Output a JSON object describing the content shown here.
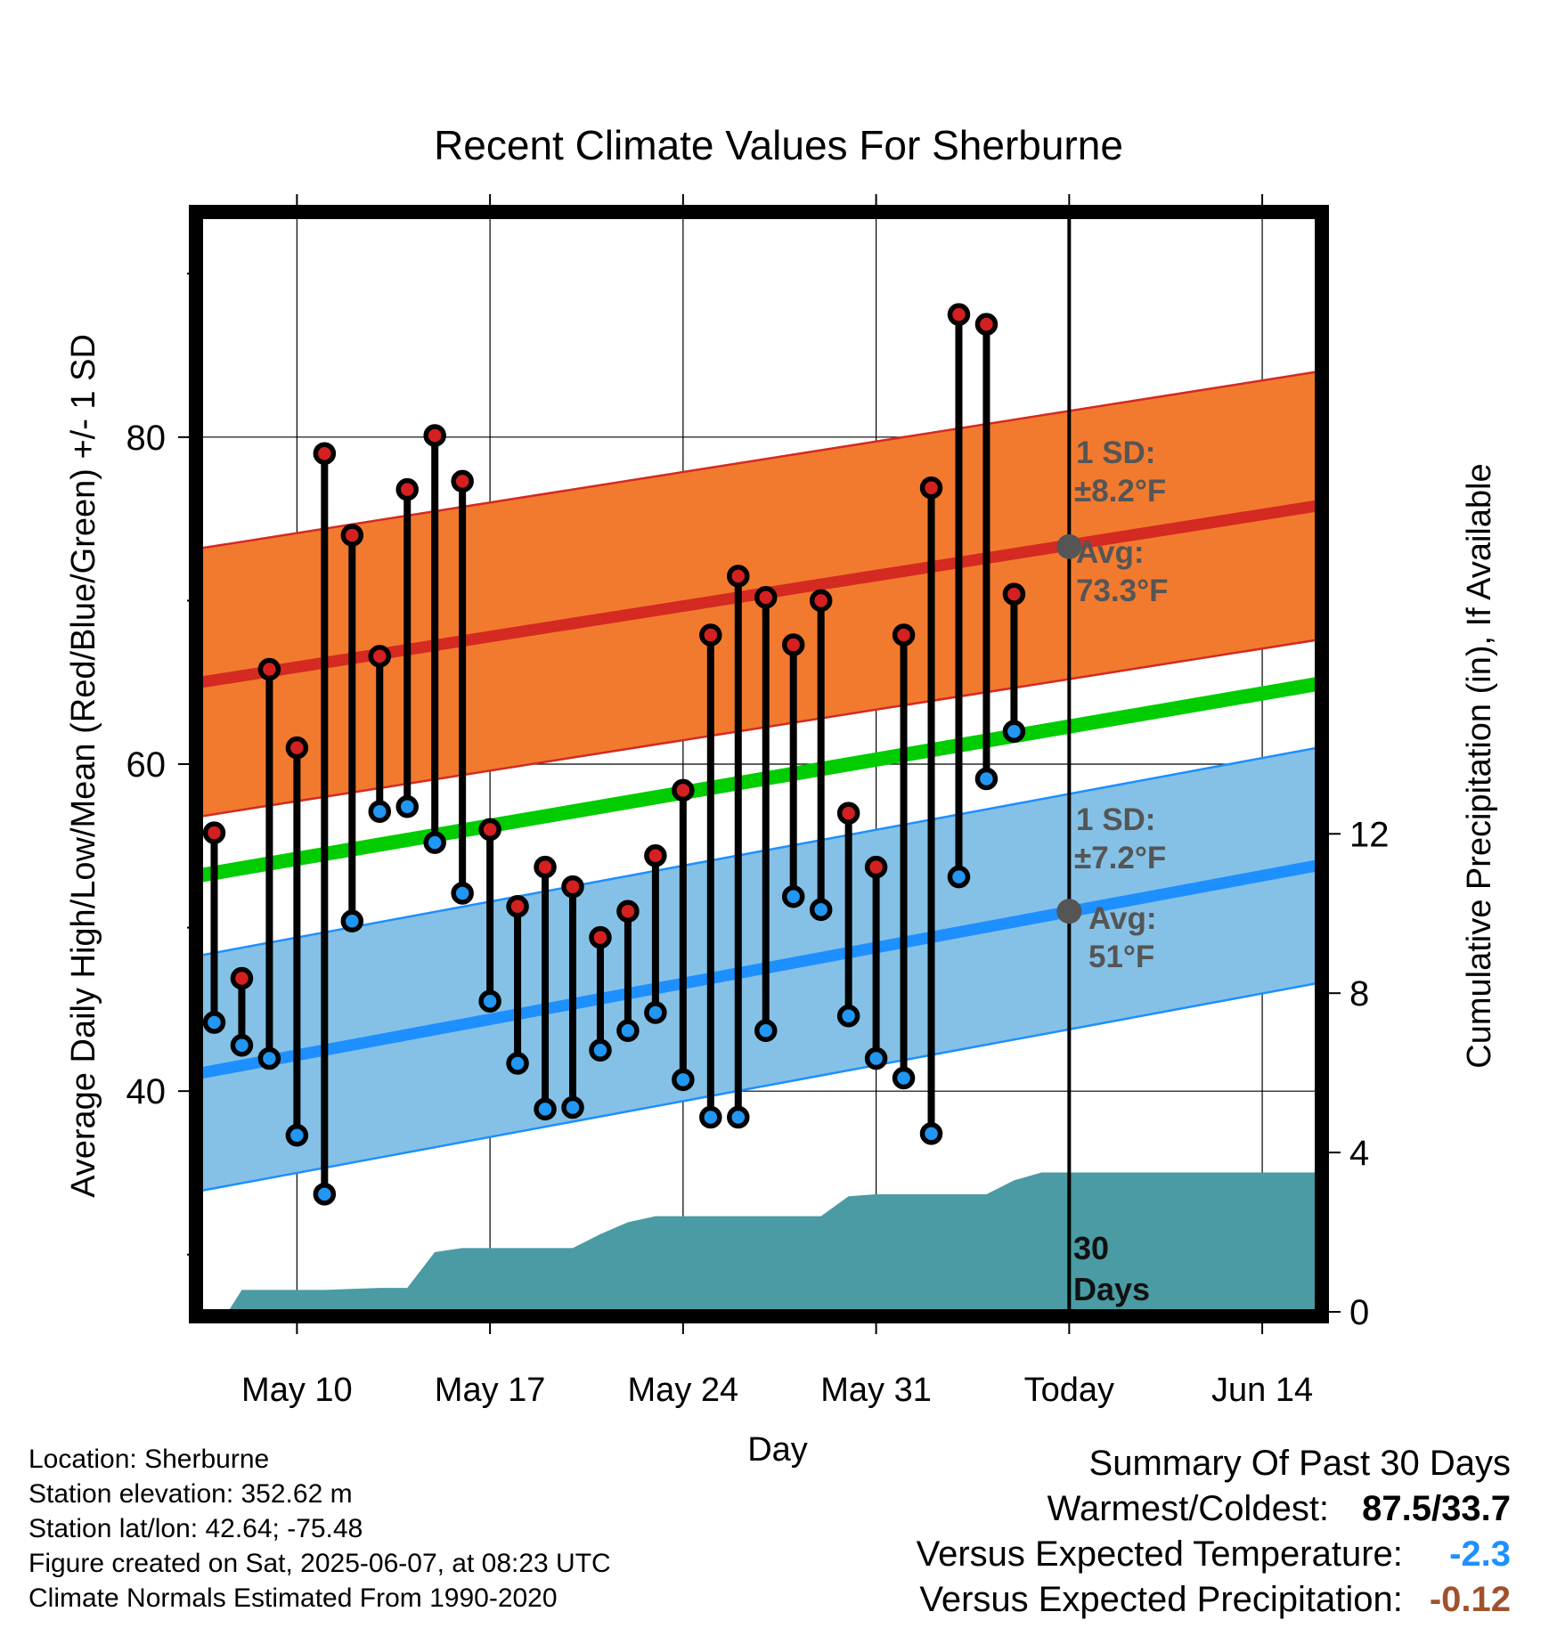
{
  "title": "Recent Climate Values For Sherburne",
  "info": {
    "location": "Location: Sherburne",
    "elevation": "Station elevation: 352.62 m",
    "latlon": "Station lat/lon: 42.64; -75.48",
    "created": "Figure created on Sat, 2025-06-07, at 08:23 UTC",
    "normals": "Climate Normals Estimated From 1990-2020"
  },
  "summary": {
    "heading": "Summary Of Past 30 Days",
    "warmest_label": "Warmest/Coldest:",
    "warmest_value": "87.5/33.7",
    "temp_label": "Versus Expected Temperature:",
    "temp_value": "-2.3",
    "precip_label": "Versus Expected Precipitation:",
    "precip_value": "-0.12"
  },
  "colors": {
    "high_band": "#f27a2e",
    "high_line": "#d42a22",
    "mean_line": "#00cc00",
    "low_band": "#85c1e6",
    "low_line": "#1e8fff",
    "precip": "#4a9ba3",
    "high_marker": "#d42020",
    "low_marker": "#2196f3",
    "annotation": "#555555"
  },
  "chart_data": {
    "type": "line",
    "title": "Recent Climate Values For Sherburne",
    "xlabel": "Day",
    "ylabel": "Average Daily High/Low/Mean (Red/Blue/Green) +/- 1 SD",
    "y2label": "Cumulative Precipitation (in), If Available",
    "x_ticks": [
      "May 10",
      "May 17",
      "May 24",
      "May 31",
      "Today",
      "Jun 14"
    ],
    "x_tick_days": [
      2,
      9,
      16,
      23,
      30,
      37
    ],
    "xlim": [
      -1.5,
      39
    ],
    "ylim": [
      26.5,
      93.5
    ],
    "y_ticks": [
      40,
      60,
      80
    ],
    "y2lim": [
      0,
      27.5
    ],
    "y2_ticks": [
      0,
      4,
      8,
      12
    ],
    "today_day": 30,
    "today_label_line1": "30",
    "today_label_line2": "Days",
    "days": [
      -1,
      0,
      1,
      2,
      3,
      4,
      5,
      6,
      7,
      8,
      9,
      10,
      11,
      12,
      13,
      14,
      15,
      16,
      17,
      18,
      19,
      20,
      21,
      22,
      23,
      24,
      25,
      26,
      27,
      28
    ],
    "highs": [
      55.8,
      46.9,
      65.8,
      61.0,
      79.0,
      74.0,
      66.6,
      76.8,
      80.1,
      77.3,
      56.0,
      51.3,
      53.7,
      52.5,
      49.4,
      51.0,
      54.4,
      58.4,
      67.9,
      71.5,
      70.2,
      67.3,
      70.0,
      57.0,
      53.7,
      67.9,
      76.9,
      87.5,
      86.9,
      70.4
    ],
    "lows": [
      44.2,
      42.8,
      42.0,
      37.3,
      33.7,
      50.4,
      57.1,
      57.4,
      55.2,
      52.1,
      45.5,
      41.7,
      38.9,
      39.0,
      42.5,
      43.7,
      44.8,
      40.7,
      38.4,
      38.4,
      43.7,
      51.9,
      51.1,
      44.6,
      42.0,
      40.8,
      37.4,
      53.1,
      59.1,
      62.0
    ],
    "normal_high": {
      "days": [
        -1.5,
        39
      ],
      "values": [
        65.0,
        75.8
      ]
    },
    "normal_mean": {
      "days": [
        -1.5,
        39
      ],
      "values": [
        53.2,
        64.9
      ]
    },
    "normal_low": {
      "days": [
        -1.5,
        39
      ],
      "values": [
        41.1,
        53.8
      ]
    },
    "high_sd": 8.2,
    "low_sd": 7.2,
    "high_avg_today": 73.3,
    "low_avg_today": 51,
    "annotations": {
      "high_sd_line1": "1 SD:",
      "high_sd_line2": "±8.2°F",
      "high_avg_line1": "Avg:",
      "high_avg_line2": "73.3°F",
      "low_sd_line1": "1 SD:",
      "low_sd_line2": "±7.2°F",
      "low_avg_line1": "Avg:",
      "low_avg_line2": "51°F"
    },
    "precip": {
      "days": [
        -1.5,
        -0.5,
        0,
        3,
        5,
        6,
        7,
        8,
        10,
        11,
        12,
        13,
        14,
        15,
        16,
        17,
        18,
        19,
        20,
        21,
        22,
        23,
        24,
        25,
        26,
        27,
        28,
        29,
        30,
        39
      ],
      "values": [
        0,
        0,
        0.55,
        0.55,
        0.6,
        0.6,
        1.5,
        1.6,
        1.6,
        1.6,
        1.6,
        1.95,
        2.25,
        2.4,
        2.4,
        2.4,
        2.4,
        2.4,
        2.4,
        2.4,
        2.9,
        2.95,
        2.95,
        2.95,
        2.95,
        2.95,
        3.3,
        3.5,
        3.5,
        3.5
      ]
    }
  }
}
